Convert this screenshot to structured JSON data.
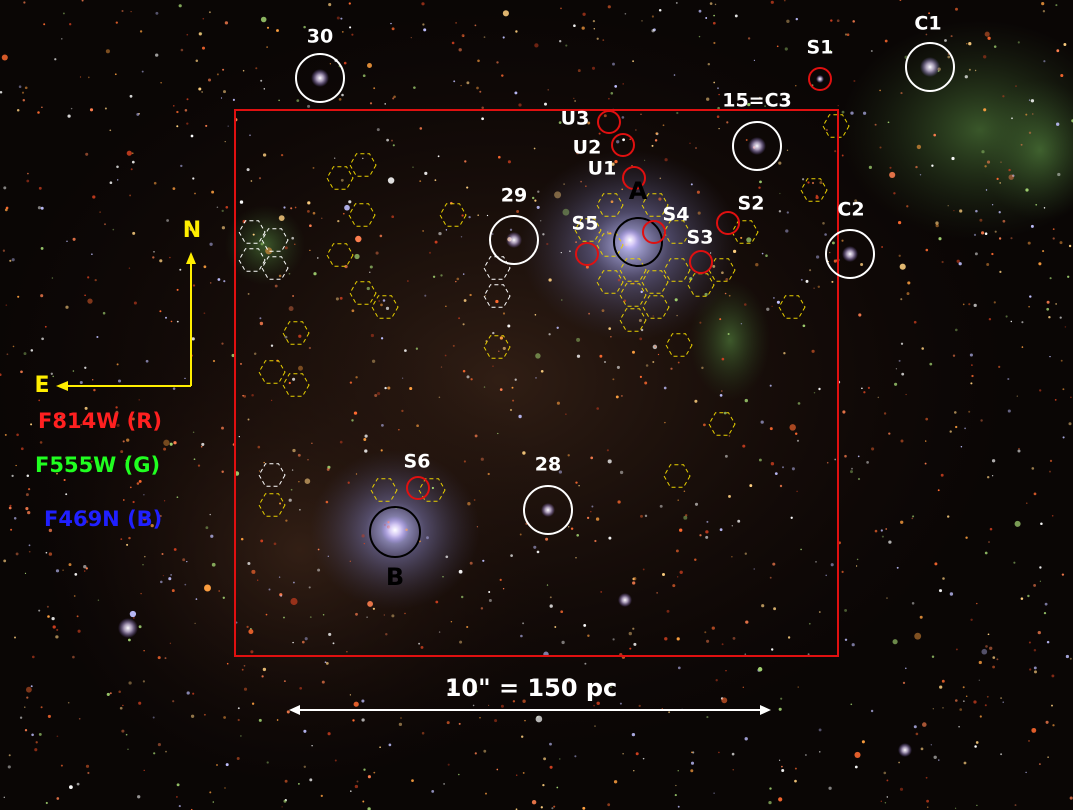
{
  "labels": [
    "30",
    "C1",
    "S1",
    "15=C3",
    "U3",
    "U2",
    "U1",
    "A",
    "S4",
    "S2",
    "S5",
    "S3",
    "29",
    "C2",
    "28",
    "S6",
    "B"
  ],
  "compass": {
    "north": "N",
    "east": "E"
  },
  "filters": [
    "F814W (R)",
    "F555W (G)",
    "F469N (B)"
  ],
  "scale_bar": "10\" = 150 pc"
}
